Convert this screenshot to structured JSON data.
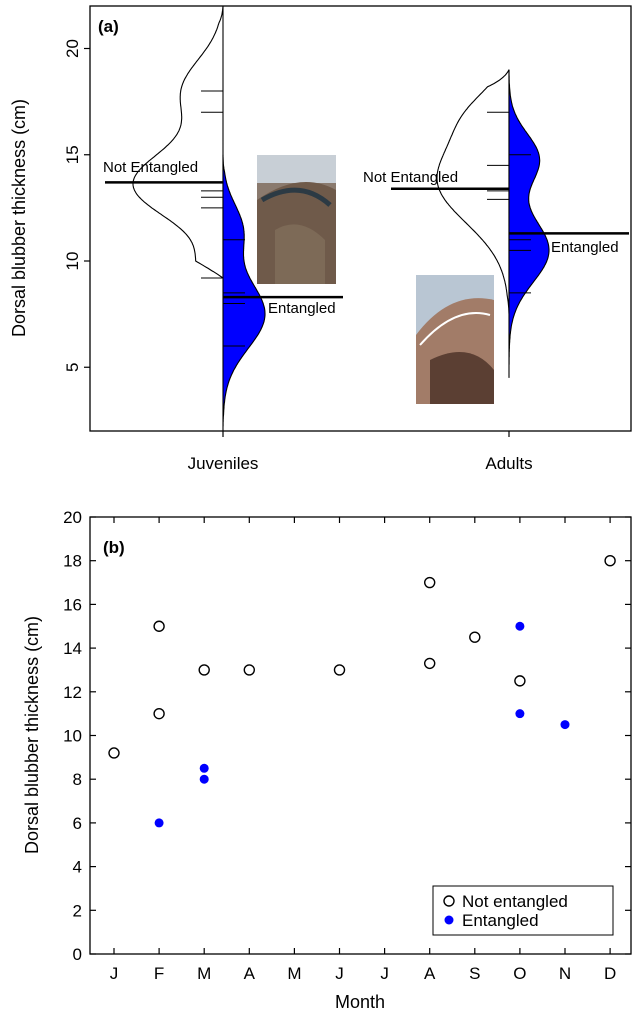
{
  "chart_data": [
    {
      "type": "violin",
      "panel_label": "(a)",
      "ylabel": "Dorsal blubber thickness (cm)",
      "ylim": [
        2,
        22
      ],
      "yticks": [
        5,
        10,
        15,
        20
      ],
      "categories": [
        "Juveniles",
        "Adults"
      ],
      "series": [
        {
          "name": "Not Entangled",
          "color": "#ffffff",
          "groups": [
            {
              "category": "Juveniles",
              "mean": 13.7,
              "range": [
                9.2,
                22
              ],
              "observations": [
                18,
                17,
                13.3,
                13,
                12.5,
                9.2
              ]
            },
            {
              "category": "Adults",
              "mean": 13.4,
              "range": [
                7.5,
                19
              ],
              "observations": [
                17,
                14.5,
                13.3,
                12.9
              ]
            }
          ]
        },
        {
          "name": "Entangled",
          "color": "#0000ff",
          "groups": [
            {
              "category": "Juveniles",
              "mean": 8.3,
              "range": [
                2,
                15
              ],
              "observations": [
                11,
                8.5,
                8,
                6
              ]
            },
            {
              "category": "Adults",
              "mean": 11.3,
              "range": [
                4.5,
                19
              ],
              "observations": [
                15,
                11,
                10.5,
                8.5
              ]
            }
          ]
        }
      ]
    },
    {
      "type": "scatter",
      "panel_label": "(b)",
      "xlabel": "Month",
      "ylabel": "Dorsal blubber thickness (cm)",
      "categories": [
        "J",
        "F",
        "M",
        "A",
        "M",
        "J",
        "J",
        "A",
        "S",
        "O",
        "N",
        "D"
      ],
      "ylim": [
        0,
        20
      ],
      "yticks": [
        0,
        2,
        4,
        6,
        8,
        10,
        12,
        14,
        16,
        18,
        20
      ],
      "legend_position": "bottom-right",
      "series": [
        {
          "name": "Not entangled",
          "marker": "open-circle",
          "color": "#000000",
          "points": [
            [
              1,
              9.2
            ],
            [
              2,
              15
            ],
            [
              2,
              11
            ],
            [
              3,
              13
            ],
            [
              4,
              13
            ],
            [
              6,
              13
            ],
            [
              8,
              17
            ],
            [
              8,
              13.3
            ],
            [
              9,
              14.5
            ],
            [
              10,
              12.5
            ],
            [
              12,
              18
            ]
          ]
        },
        {
          "name": "Entangled",
          "marker": "filled-circle",
          "color": "#0000ff",
          "points": [
            [
              2,
              6
            ],
            [
              3,
              8.5
            ],
            [
              3,
              8
            ],
            [
              10,
              15
            ],
            [
              10,
              11
            ],
            [
              11,
              10.5
            ]
          ]
        }
      ]
    }
  ]
}
